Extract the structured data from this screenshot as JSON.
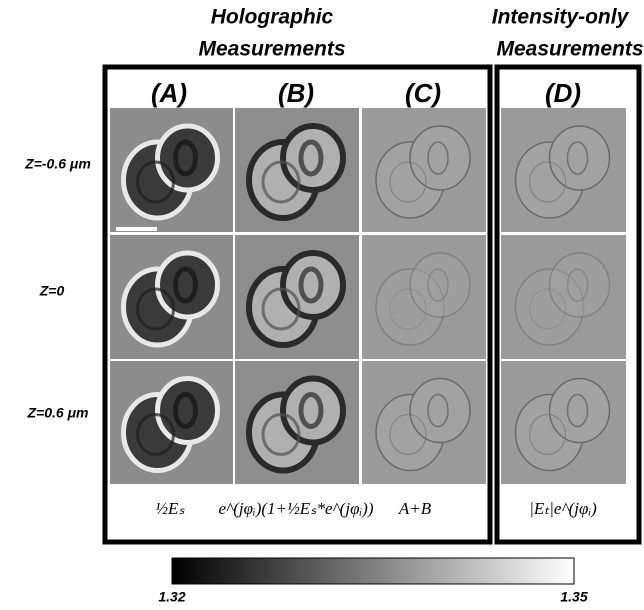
{
  "header": {
    "left": [
      "Holographic",
      "Measurements"
    ],
    "right": [
      "Intensity-only",
      "Measurements"
    ]
  },
  "columns": [
    "(A)",
    "(B)",
    "(C)",
    "(D)"
  ],
  "rows": [
    "Z=-0.6 μm",
    "Z=0",
    "Z=0.6 μm"
  ],
  "formulas": [
    "½Eₛ",
    "e^(jφᵢ)(1+½Eₛ*e^(jφᵢ))",
    "A+B",
    "|Eₜ|e^(jφᵢ)"
  ],
  "colorbar": {
    "min": "1.32",
    "max": "1.35"
  }
}
